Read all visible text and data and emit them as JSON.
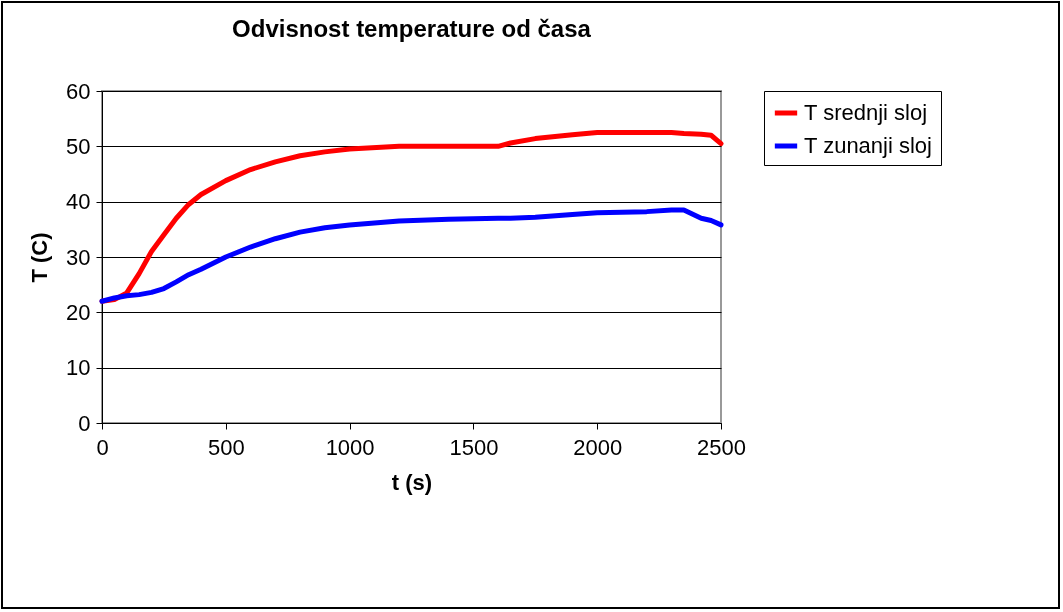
{
  "chart_data": {
    "type": "line",
    "title": "Odvisnost temperature od časa",
    "xlabel": "t (s)",
    "ylabel": "T (C)",
    "x": [
      0,
      50,
      100,
      150,
      200,
      250,
      300,
      350,
      400,
      500,
      600,
      700,
      800,
      900,
      1000,
      1200,
      1400,
      1600,
      1650,
      1750,
      1900,
      2000,
      2200,
      2300,
      2350,
      2420,
      2460,
      2500
    ],
    "series": [
      {
        "name": "T srednji sloj",
        "color": "#ff0000",
        "values": [
          22,
          22.3,
          23.5,
          27,
          31,
          34,
          37,
          39.5,
          41.3,
          43.8,
          45.8,
          47.2,
          48.3,
          49,
          49.5,
          50,
          50,
          50,
          50.6,
          51.4,
          52.1,
          52.5,
          52.5,
          52.5,
          52.3,
          52.2,
          52,
          50.5
        ]
      },
      {
        "name": "T zunanji sloj",
        "color": "#0000ff",
        "values": [
          22,
          22.6,
          23,
          23.2,
          23.6,
          24.3,
          25.5,
          26.8,
          27.8,
          30,
          31.8,
          33.3,
          34.5,
          35.3,
          35.8,
          36.5,
          36.8,
          37,
          37,
          37.2,
          37.7,
          38,
          38.2,
          38.5,
          38.5,
          37,
          36.6,
          35.8
        ]
      }
    ],
    "xlim": [
      0,
      2500
    ],
    "xticks": [
      0,
      500,
      1000,
      1500,
      2000,
      2500
    ],
    "ylim": [
      0,
      60
    ],
    "yticks": [
      0,
      10,
      20,
      30,
      40,
      50,
      60
    ],
    "grid": "y",
    "legend": "right",
    "marker": "none",
    "line_style": "solid"
  }
}
